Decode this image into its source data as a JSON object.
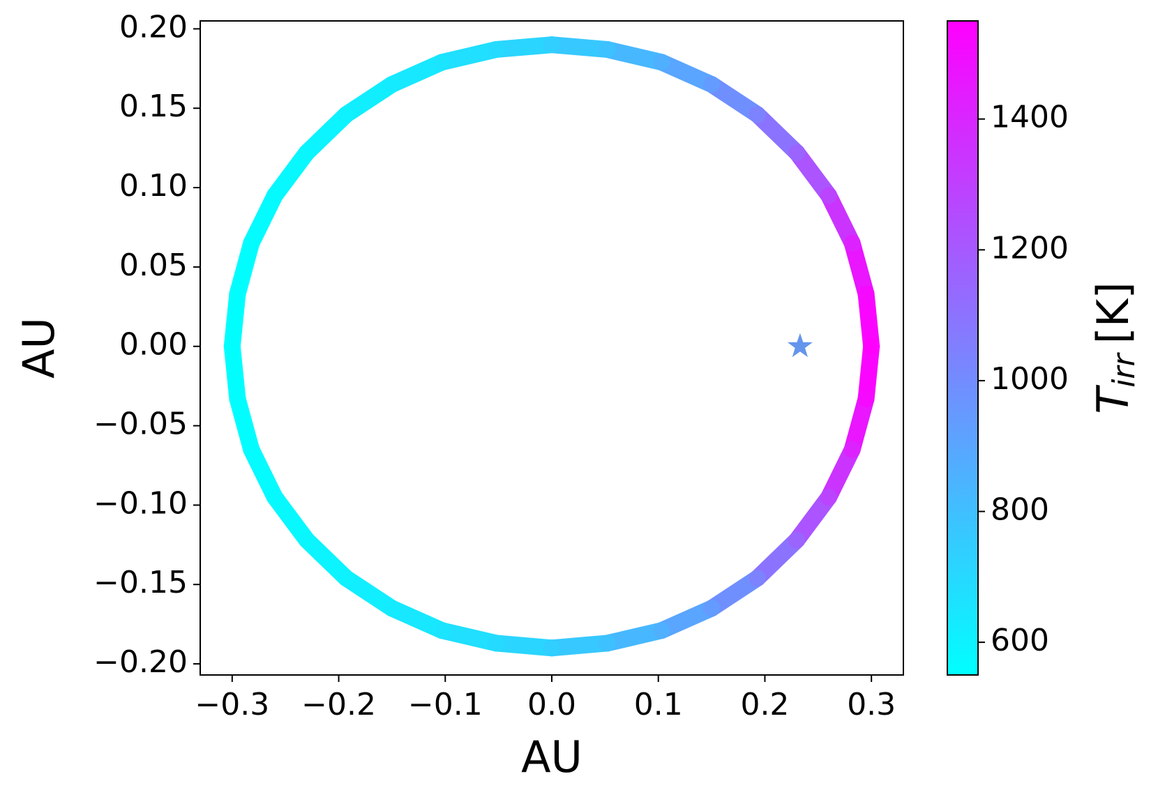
{
  "chart_data": {
    "type": "scatter",
    "xlabel": "AU",
    "ylabel": "AU",
    "xlim": [
      -0.33,
      0.33
    ],
    "xticks": [
      {
        "value": -0.3,
        "label": "−0.3"
      },
      {
        "value": -0.2,
        "label": "−0.2"
      },
      {
        "value": -0.1,
        "label": "−0.1"
      },
      {
        "value": 0,
        "label": "0.0"
      },
      0.1,
      0.2,
      0.3
    ],
    "ylim": [
      -0.207,
      0.205
    ],
    "yticks": [
      {
        "value": -0.2,
        "label": "−0.20"
      },
      {
        "value": -0.15,
        "label": "−0.15"
      },
      {
        "value": -0.1,
        "label": "−0.10"
      },
      {
        "value": -0.05,
        "label": "−0.05"
      },
      {
        "value": 0,
        "label": "0.00"
      },
      {
        "value": 0.05,
        "label": "0.05"
      },
      {
        "value": 0.1,
        "label": "0.10"
      },
      {
        "value": 0.15,
        "label": "0.15"
      },
      {
        "value": 0.2,
        "label": "0.20"
      }
    ],
    "series": [
      {
        "x": [
          0.3,
          0.295,
          0.282,
          0.26,
          0.23,
          0.193,
          0.15,
          0.103,
          0.052,
          0,
          -0.052,
          -0.103,
          -0.15,
          -0.193,
          -0.23,
          -0.26,
          -0.282,
          -0.295,
          -0.3,
          -0.295,
          -0.282,
          -0.26,
          -0.23,
          -0.193,
          -0.15,
          -0.103,
          -0.052,
          0,
          0.052,
          0.103,
          0.15,
          0.193,
          0.23,
          0.26,
          0.282,
          0.295
        ],
        "y": [
          0,
          0.033,
          0.065,
          0.095,
          0.122,
          0.146,
          0.165,
          0.179,
          0.187,
          0.19,
          0.187,
          0.179,
          0.165,
          0.146,
          0.122,
          0.095,
          0.065,
          0.033,
          0,
          -0.033,
          -0.065,
          -0.095,
          -0.122,
          -0.146,
          -0.165,
          -0.179,
          -0.187,
          -0.19,
          -0.187,
          -0.179,
          -0.165,
          -0.146,
          -0.122,
          -0.095,
          -0.065,
          -0.033
        ],
        "c": [
          1550,
          1512,
          1412,
          1284,
          1156,
          1040,
          942,
          860,
          793,
          738,
          693,
          656,
          627,
          603,
          585,
          571,
          562,
          556,
          554,
          556,
          562,
          571,
          585,
          603,
          627,
          656,
          693,
          738,
          793,
          860,
          942,
          1040,
          1156,
          1284,
          1412,
          1512
        ]
      }
    ],
    "star": {
      "x": 0.233,
      "y": 0,
      "color": "#6495ed"
    },
    "colorbar": {
      "clim": [
        550,
        1550
      ],
      "ticks": [
        600,
        800,
        1000,
        1200,
        1400
      ],
      "colormap": [
        "#00ffff",
        "#ff00ff"
      ],
      "label": {
        "symbol": "T",
        "subscript": "irr",
        "unit": "[K]"
      }
    }
  }
}
